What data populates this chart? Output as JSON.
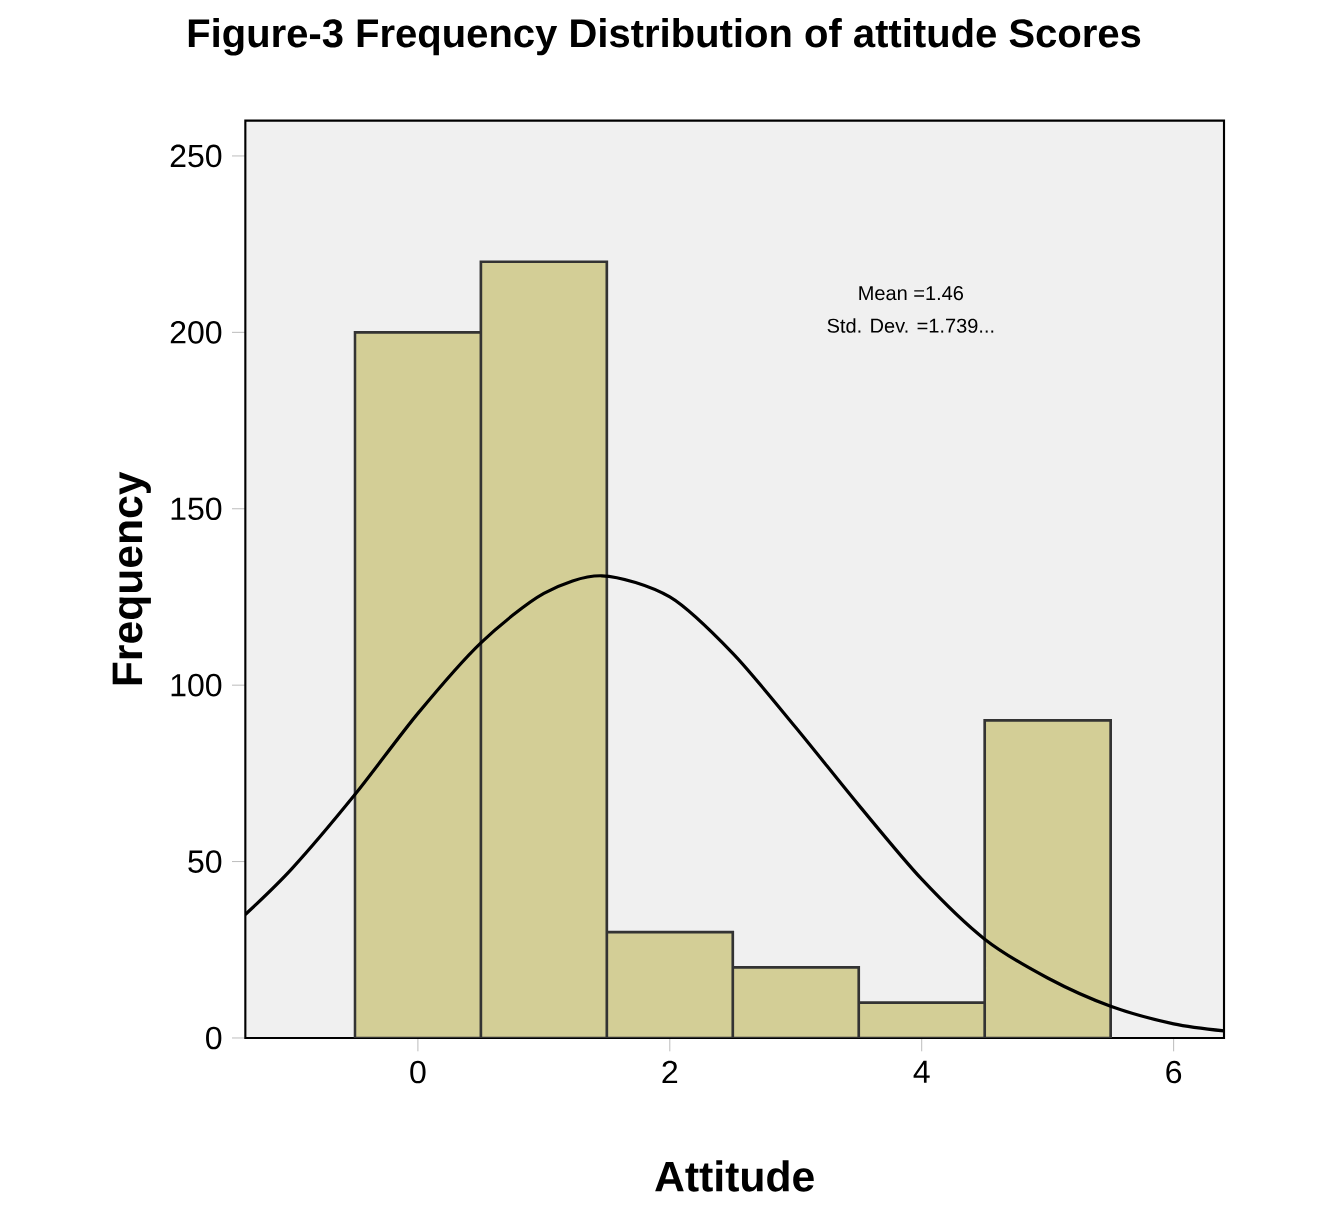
{
  "chart_data": {
    "type": "histogram",
    "title": "Figure-3 Frequency Distribution of attitude Scores",
    "xlabel": "Attitude",
    "ylabel": "Frequency",
    "bins": [
      -0.5,
      0.5,
      1.5,
      2.5,
      3.5,
      4.5,
      5.5
    ],
    "values": [
      200,
      220,
      30,
      20,
      10,
      90
    ],
    "color": "#d3ce96",
    "series": [
      {
        "type": "line",
        "color": "#000000",
        "x": [
          -1.37,
          -1,
          -0.5,
          0,
          0.5,
          1,
          1.46,
          2,
          2.5,
          3,
          3.5,
          4,
          4.5,
          5,
          5.5,
          6,
          6.4
        ],
        "values": [
          35,
          48,
          69,
          92,
          112,
          126,
          131,
          125,
          109,
          88,
          66,
          45,
          28,
          17,
          9,
          4,
          2
        ]
      }
    ],
    "xlim": [
      -1.37,
      6.4
    ],
    "ylim": [
      0,
      260
    ],
    "xticks": [
      0,
      2,
      4,
      6
    ],
    "yticks": [
      0,
      50,
      100,
      150,
      200,
      250
    ],
    "grid": false,
    "annotations": [
      "Mean =1.46",
      "Std. Dev. =1.739..."
    ]
  }
}
